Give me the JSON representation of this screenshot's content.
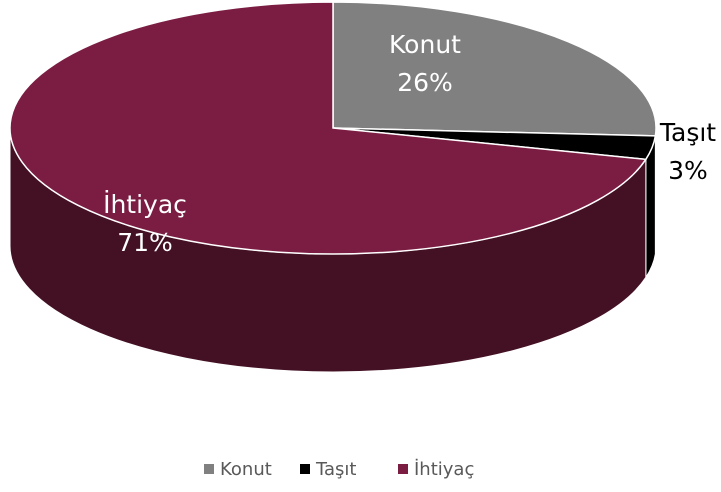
{
  "chart_data": {
    "type": "pie",
    "categories": [
      "Konut",
      "Taşıt",
      "İhtiyaç"
    ],
    "values": [
      26,
      3,
      71
    ],
    "value_labels": [
      "26%",
      "3%",
      "71%"
    ],
    "colors": [
      "#808080",
      "#000000",
      "#7b1d42"
    ],
    "legend": "bottom"
  }
}
